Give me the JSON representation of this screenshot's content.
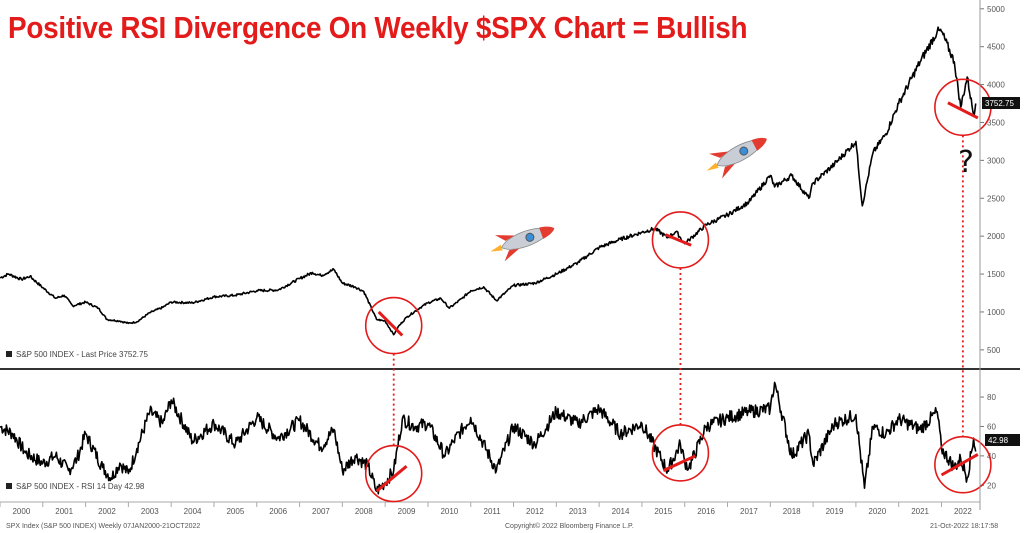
{
  "title": "Positive RSI Divergence On Weekly $SPX Chart = Bullish",
  "chart_data": [
    {
      "type": "line",
      "legend": "S&P 500 INDEX - Last Price 3752.75",
      "last_value_label": "3752.75",
      "ylim": [
        300,
        5050
      ],
      "yticks": [
        500,
        1000,
        1500,
        2000,
        2500,
        3000,
        3500,
        4000,
        4500,
        5000
      ],
      "x_years": [
        "2000",
        "2001",
        "2002",
        "2003",
        "2004",
        "2005",
        "2006",
        "2007",
        "2008",
        "2009",
        "2010",
        "2011",
        "2012",
        "2013",
        "2014",
        "2015",
        "2016",
        "2017",
        "2018",
        "2019",
        "2020",
        "2021",
        "2022"
      ],
      "series": [
        {
          "x": [
            2000.0,
            2000.2,
            2000.5,
            2000.7,
            2001.0,
            2001.3,
            2001.5,
            2001.7,
            2002.0,
            2002.3,
            2002.5,
            2002.8,
            2003.0,
            2003.2,
            2003.5,
            2003.8,
            2004.0,
            2004.5,
            2005.0,
            2005.5,
            2006.0,
            2006.5,
            2007.0,
            2007.3,
            2007.5,
            2007.8,
            2008.0,
            2008.3,
            2008.5,
            2008.8,
            2009.0,
            2009.2,
            2009.3,
            2009.5,
            2009.8,
            2010.0,
            2010.3,
            2010.5,
            2010.8,
            2011.0,
            2011.3,
            2011.6,
            2011.8,
            2012.0,
            2012.5,
            2013.0,
            2013.5,
            2014.0,
            2014.5,
            2015.0,
            2015.3,
            2015.6,
            2015.8,
            2016.0,
            2016.1,
            2016.5,
            2017.0,
            2017.5,
            2018.0,
            2018.1,
            2018.5,
            2018.9,
            2019.0,
            2019.5,
            2020.0,
            2020.15,
            2020.22,
            2020.4,
            2020.7,
            2021.0,
            2021.5,
            2021.9,
            2022.0,
            2022.3,
            2022.45,
            2022.6,
            2022.75,
            2022.8
          ],
          "y": [
            1450,
            1500,
            1430,
            1470,
            1320,
            1180,
            1220,
            1080,
            1130,
            1050,
            900,
            880,
            850,
            870,
            990,
            1060,
            1130,
            1120,
            1200,
            1220,
            1280,
            1290,
            1440,
            1520,
            1480,
            1560,
            1380,
            1330,
            1270,
            900,
            880,
            700,
            800,
            930,
            1050,
            1120,
            1180,
            1050,
            1180,
            1280,
            1330,
            1150,
            1250,
            1350,
            1380,
            1500,
            1650,
            1850,
            1960,
            2050,
            2100,
            1980,
            2060,
            1900,
            1950,
            2150,
            2280,
            2450,
            2800,
            2650,
            2800,
            2500,
            2700,
            2950,
            3250,
            2400,
            2600,
            3100,
            3350,
            3750,
            4300,
            4700,
            4700,
            4300,
            3700,
            4100,
            3600,
            3750
          ]
        }
      ]
    },
    {
      "type": "line",
      "legend": "S&P 500 INDEX - RSI 14 Day 42.98",
      "last_value_label": "42.98",
      "ylim": [
        10,
        95
      ],
      "yticks": [
        20,
        40,
        60,
        80
      ],
      "series": [
        {
          "x": [
            2000.0,
            2000.3,
            2000.6,
            2001.0,
            2001.3,
            2001.6,
            2001.8,
            2002.0,
            2002.4,
            2002.6,
            2002.8,
            2003.0,
            2003.2,
            2003.5,
            2003.8,
            2004.0,
            2004.5,
            2005.0,
            2005.5,
            2006.0,
            2006.5,
            2007.0,
            2007.5,
            2007.8,
            2008.0,
            2008.3,
            2008.6,
            2008.8,
            2009.0,
            2009.2,
            2009.4,
            2009.7,
            2010.0,
            2010.4,
            2010.6,
            2011.0,
            2011.6,
            2012.0,
            2012.5,
            2013.0,
            2013.5,
            2014.0,
            2014.5,
            2015.0,
            2015.6,
            2015.9,
            2016.0,
            2016.1,
            2016.5,
            2017.0,
            2017.5,
            2018.0,
            2018.1,
            2018.5,
            2018.9,
            2019.0,
            2019.5,
            2020.0,
            2020.2,
            2020.4,
            2020.7,
            2021.0,
            2021.5,
            2021.9,
            2022.0,
            2022.3,
            2022.45,
            2022.6,
            2022.75,
            2022.8
          ],
          "y": [
            60,
            55,
            42,
            35,
            40,
            30,
            38,
            55,
            32,
            25,
            35,
            28,
            45,
            70,
            62,
            78,
            50,
            62,
            48,
            66,
            52,
            64,
            46,
            58,
            30,
            40,
            33,
            16,
            22,
            30,
            65,
            60,
            62,
            40,
            50,
            66,
            30,
            60,
            48,
            70,
            62,
            72,
            55,
            62,
            30,
            48,
            36,
            32,
            60,
            66,
            70,
            72,
            90,
            40,
            55,
            34,
            62,
            68,
            18,
            60,
            55,
            65,
            58,
            70,
            45,
            32,
            38,
            25,
            52,
            43
          ]
        }
      ]
    }
  ],
  "footer": {
    "left": "SPX Index (S&P 500 INDEX) Weekly 07JAN2000-21OCT2022",
    "center": "Copyright© 2022 Bloomberg Finance L.P.",
    "right": "21-Oct-2022 18:17:58"
  },
  "annotation": {
    "question_mark": "?"
  },
  "colors": {
    "title": "#e31b1b",
    "line": "#000000",
    "divergence": "#e31b1b"
  },
  "icons": [
    "rocket-icon",
    "rocket-icon"
  ]
}
